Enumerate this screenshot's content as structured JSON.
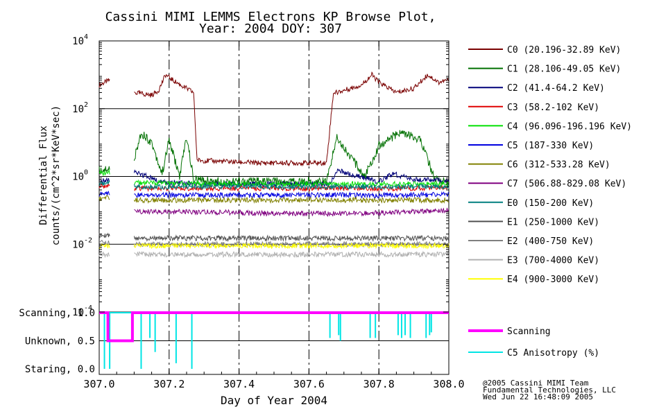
{
  "chart_data": [
    {
      "type": "line",
      "title": "Cassini MIMI LEMMS Electrons KP Browse Plot,",
      "subtitle": "Year: 2004 DOY: 307",
      "ylabel": "Differential Flux",
      "ylabel2": "counts/(cm^2*sr*KeV*sec)",
      "yscale": "log",
      "ylim": [
        0.0001,
        10000
      ],
      "yticks": [
        {
          "value": 0.0001,
          "base": "10",
          "exp": "-4"
        },
        {
          "value": 0.01,
          "base": "10",
          "exp": "-2"
        },
        {
          "value": 1,
          "base": "10",
          "exp": "0"
        },
        {
          "value": 100,
          "base": "10",
          "exp": "2"
        },
        {
          "value": 10000,
          "base": "10",
          "exp": "4"
        }
      ],
      "xlim": [
        307.0,
        308.0
      ],
      "grid": true,
      "legend_position": "right",
      "series": [
        {
          "name": "C0 (20.196-32.89 KeV)",
          "color": "#7a0000",
          "x": [
            307.0,
            307.03,
            307.1,
            307.15,
            307.17,
            307.19,
            307.21,
            307.24,
            307.27,
            307.28,
            307.35,
            307.45,
            307.55,
            307.65,
            307.67,
            307.68,
            307.75,
            307.78,
            307.8,
            307.85,
            307.9,
            307.94,
            307.97,
            308.0
          ],
          "values": [
            500,
            700,
            300,
            250,
            350,
            1000,
            700,
            450,
            300,
            3,
            2.8,
            2.5,
            2.5,
            2.5,
            300,
            300,
            500,
            1000,
            600,
            300,
            400,
            1000,
            600,
            700
          ]
        },
        {
          "name": "C1 (28.106-49.05 KeV)",
          "color": "#007000",
          "x": [
            307.0,
            307.03,
            307.1,
            307.12,
            307.15,
            307.18,
            307.2,
            307.23,
            307.25,
            307.27,
            307.35,
            307.5,
            307.65,
            307.68,
            307.71,
            307.76,
            307.8,
            307.86,
            307.92,
            307.96,
            308.0
          ],
          "values": [
            1.5,
            1.8,
            3,
            20,
            10,
            1.2,
            12,
            1,
            15,
            0.8,
            0.7,
            0.7,
            0.7,
            15,
            5,
            1,
            8,
            20,
            12,
            0.8,
            0.7
          ]
        },
        {
          "name": "C2 (41.4-64.2 KeV)",
          "color": "#00007a",
          "x": [
            307.0,
            307.03,
            307.1,
            307.14,
            307.17,
            307.3,
            307.5,
            307.66,
            307.68,
            307.8,
            307.84,
            307.9,
            307.95,
            308.0
          ],
          "values": [
            0.7,
            0.8,
            1.3,
            1.0,
            0.7,
            0.6,
            0.6,
            0.6,
            1.5,
            0.7,
            1.2,
            0.8,
            0.8,
            0.7
          ]
        },
        {
          "name": "C3 (58.2-102 KeV)",
          "color": "#e00000",
          "x": [
            307.0,
            307.03,
            307.1,
            307.3,
            307.5,
            307.7,
            307.9,
            308.0
          ],
          "values": [
            0.5,
            0.55,
            0.45,
            0.45,
            0.45,
            0.45,
            0.45,
            0.5
          ]
        },
        {
          "name": "C4 (96.096-196.196 KeV)",
          "color": "#00e000",
          "x": [
            307.0,
            307.03,
            307.1,
            307.3,
            307.5,
            307.7,
            307.9,
            308.0
          ],
          "values": [
            1.2,
            1.3,
            0.65,
            0.6,
            0.6,
            0.6,
            0.6,
            0.6
          ]
        },
        {
          "name": "C5 (187-330 KeV)",
          "color": "#0000e0",
          "x": [
            307.0,
            307.03,
            307.1,
            307.3,
            307.5,
            307.7,
            307.9,
            308.0
          ],
          "values": [
            0.3,
            0.32,
            0.28,
            0.28,
            0.28,
            0.28,
            0.28,
            0.3
          ]
        },
        {
          "name": "C6 (312-533.28 KeV)",
          "color": "#808000",
          "x": [
            307.0,
            307.03,
            307.1,
            307.3,
            307.5,
            307.7,
            307.9,
            308.0
          ],
          "values": [
            0.22,
            0.24,
            0.2,
            0.2,
            0.2,
            0.2,
            0.2,
            0.2
          ]
        },
        {
          "name": "C7 (506.88-829.08 KeV)",
          "color": "#800080",
          "x": [
            307.1,
            307.3,
            307.5,
            307.7,
            307.9,
            308.0
          ],
          "values": [
            0.09,
            0.09,
            0.08,
            0.08,
            0.09,
            0.1
          ]
        },
        {
          "name": "E0 (150-200 KeV)",
          "color": "#007f7f",
          "x": [
            307.0,
            307.03,
            307.1,
            307.5,
            308.0
          ],
          "values": [
            0.6,
            0.65,
            0.5,
            0.5,
            0.5
          ]
        },
        {
          "name": "E1 (250-1000 KeV)",
          "color": "#505050",
          "x": [
            307.0,
            307.03,
            307.1,
            307.5,
            308.0
          ],
          "values": [
            0.018,
            0.018,
            0.015,
            0.015,
            0.015
          ]
        },
        {
          "name": "E2 (400-750 KeV)",
          "color": "#7f7f7f",
          "x": [
            307.0,
            307.03,
            307.1,
            307.5,
            308.0
          ],
          "values": [
            0.011,
            0.011,
            0.01,
            0.01,
            0.01
          ]
        },
        {
          "name": "E3 (700-4000 KeV)",
          "color": "#b0b0b0",
          "x": [
            307.0,
            307.03,
            307.1,
            307.5,
            308.0
          ],
          "values": [
            0.005,
            0.005,
            0.005,
            0.005,
            0.005
          ]
        },
        {
          "name": "E4 (900-3000 KeV)",
          "color": "#ffff00",
          "x": [
            307.0,
            307.03,
            307.1,
            307.5,
            308.0
          ],
          "values": [
            0.009,
            0.009,
            0.009,
            0.009,
            0.009
          ]
        }
      ]
    },
    {
      "type": "line",
      "xlabel": "Day of Year 2004",
      "xlim": [
        307.0,
        308.0
      ],
      "xticks": [
        "307.0",
        "307.2",
        "307.4",
        "307.6",
        "307.8",
        "308.0"
      ],
      "ylim": [
        0,
        1
      ],
      "yticks": [
        {
          "value": 1.0,
          "label": "Scanning, 1.0"
        },
        {
          "value": 0.5,
          "label": "Unknown, 0.5"
        },
        {
          "value": 0.0,
          "label": "Staring, 0.0"
        }
      ],
      "legend_position": "right",
      "series": [
        {
          "name": "Scanning",
          "color": "#ff00ff",
          "x": [
            307.0,
            307.025,
            307.025,
            307.095,
            307.095,
            308.0
          ],
          "values": [
            1.0,
            1.0,
            0.5,
            0.5,
            1.0,
            1.0
          ]
        },
        {
          "name": "C5 Anisotropy (%)",
          "color": "#00e5e5",
          "spikes": [
            {
              "x": 307.015,
              "low": 0.0
            },
            {
              "x": 307.03,
              "low": 0.0
            },
            {
              "x": 307.12,
              "low": 0.0
            },
            {
              "x": 307.145,
              "low": 0.55
            },
            {
              "x": 307.16,
              "low": 0.3
            },
            {
              "x": 307.22,
              "low": 0.1
            },
            {
              "x": 307.265,
              "low": 0.0
            },
            {
              "x": 307.66,
              "low": 0.55
            },
            {
              "x": 307.685,
              "low": 0.6
            },
            {
              "x": 307.69,
              "low": 0.5
            },
            {
              "x": 307.775,
              "low": 0.55
            },
            {
              "x": 307.79,
              "low": 0.55
            },
            {
              "x": 307.855,
              "low": 0.6
            },
            {
              "x": 307.865,
              "low": 0.55
            },
            {
              "x": 307.875,
              "low": 0.6
            },
            {
              "x": 307.89,
              "low": 0.55
            },
            {
              "x": 307.935,
              "low": 0.55
            },
            {
              "x": 307.945,
              "low": 0.6
            },
            {
              "x": 307.95,
              "low": 0.65
            }
          ]
        }
      ]
    }
  ],
  "footer": {
    "line1": "@2005 Cassini MIMI Team",
    "line2": "Fundamental Technologies, LLC",
    "line3": "Wed Jun 22 16:48:09 2005"
  }
}
